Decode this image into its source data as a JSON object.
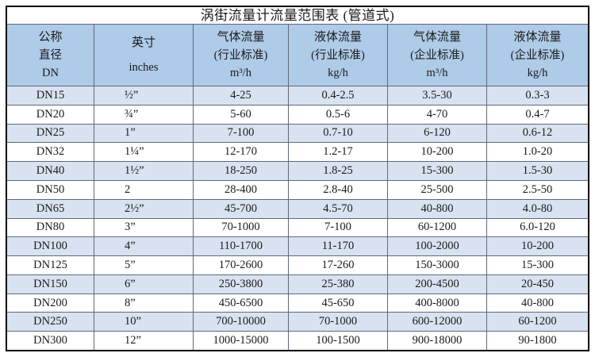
{
  "colors": {
    "outer_border": "#000000",
    "grid_line": "#5f6a78",
    "header_bg": "#aecbe8",
    "band_bg": "#d8e2f0",
    "row_bg": "#ffffff",
    "title_bg": "#ffffff",
    "text": "#1a1a1a"
  },
  "table": {
    "title": "涡街流量计流量范围表 (管道式)",
    "columns": [
      {
        "key": "dn",
        "lines": [
          "公称",
          "直径",
          "DN"
        ]
      },
      {
        "key": "inches",
        "lines": [
          "英寸",
          "inches"
        ]
      },
      {
        "key": "gas-industry",
        "lines": [
          "气体流量",
          "(行业标准)",
          "m³/h"
        ]
      },
      {
        "key": "liquid-industry",
        "lines": [
          "液体流量",
          "(行业标准)",
          "kg/h"
        ]
      },
      {
        "key": "gas-enterprise",
        "lines": [
          "气体流量",
          "(企业标准)",
          "m³/h"
        ]
      },
      {
        "key": "liquid-enterprise",
        "lines": [
          "液体流量",
          "(企业标准)",
          "kg/h"
        ]
      }
    ],
    "rows": [
      [
        "DN15",
        "½”",
        "4-25",
        "0.4-2.5",
        "3.5-30",
        "0.3-3"
      ],
      [
        "DN20",
        "¾”",
        "5-60",
        "0.5-6",
        "4-70",
        "0.4-7"
      ],
      [
        "DN25",
        "1”",
        "7-100",
        "0.7-10",
        "6-120",
        "0.6-12"
      ],
      [
        "DN32",
        "1¼”",
        "12-170",
        "1.2-17",
        "10-200",
        "1.0-20"
      ],
      [
        "DN40",
        "1½”",
        "18-250",
        "1.8-25",
        "15-300",
        "1.5-30"
      ],
      [
        "DN50",
        "2",
        "28-400",
        "2.8-40",
        "25-500",
        "2.5-50"
      ],
      [
        "DN65",
        "2½”",
        "45-700",
        "4.5-70",
        "40-800",
        "4.0-80"
      ],
      [
        "DN80",
        "3”",
        "70-1000",
        "7-100",
        "60-1200",
        "6.0-120"
      ],
      [
        "DN100",
        "4”",
        "110-1700",
        "11-170",
        "100-2000",
        "10-200"
      ],
      [
        "DN125",
        "5”",
        "170-2600",
        "17-260",
        "150-3000",
        "15-300"
      ],
      [
        "DN150",
        "6”",
        "250-3800",
        "25-380",
        "200-4500",
        "20-450"
      ],
      [
        "DN200",
        "8”",
        "450-6500",
        "45-650",
        "400-8000",
        "40-800"
      ],
      [
        "DN250",
        "10”",
        "700-10000",
        "70-1000",
        "600-12000",
        "60-1200"
      ],
      [
        "DN300",
        "12”",
        "1000-15000",
        "100-1500",
        "900-18000",
        "90-1800"
      ]
    ]
  }
}
